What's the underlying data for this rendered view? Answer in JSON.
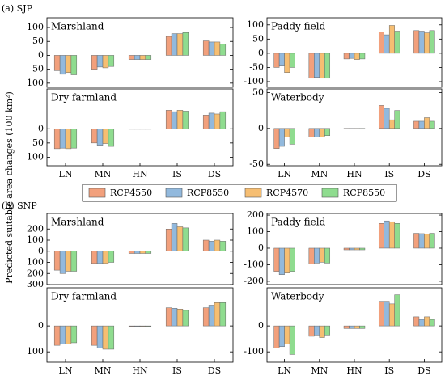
{
  "sections": [
    "(a) SJP",
    "(b) SNP"
  ],
  "y_label": "Predicted suitable area changes (100 km²)",
  "legend": [
    {
      "name": "RCP4550",
      "color": "#f2a07c"
    },
    {
      "name": "RCP8550",
      "color": "#92b9dd"
    },
    {
      "name": "RCP4570",
      "color": "#f6be72"
    },
    {
      "name": "RCP8550",
      "color": "#8fdc8f"
    }
  ],
  "chart_data": [
    {
      "type": "bar",
      "title": "Marshland",
      "ylim": [
        -115,
        135
      ],
      "yticks": [
        100,
        50,
        0,
        {
          "value": -50,
          "label": "50"
        },
        {
          "value": -100,
          "label": "100"
        }
      ],
      "series": [
        {
          "values": [
            -55,
            -50,
            -15,
            68,
            52
          ]
        },
        {
          "values": [
            -68,
            -42,
            -15,
            78,
            48
          ]
        },
        {
          "values": [
            -62,
            -45,
            -15,
            78,
            48
          ]
        },
        {
          "values": [
            -70,
            -40,
            -15,
            82,
            40
          ]
        }
      ]
    },
    {
      "type": "bar",
      "title": "Dry farmland",
      "ylim": [
        -130,
        140
      ],
      "categories": [
        "LN",
        "MN",
        "HN",
        "IS",
        "DS"
      ],
      "yticks": [
        0,
        {
          "value": -50,
          "label": "50"
        },
        {
          "value": -100,
          "label": "100"
        }
      ],
      "series": [
        {
          "values": [
            -70,
            -50,
            0,
            65,
            48
          ]
        },
        {
          "values": [
            -68,
            -58,
            0,
            60,
            55
          ]
        },
        {
          "values": [
            -70,
            -52,
            0,
            65,
            52
          ]
        },
        {
          "values": [
            -68,
            -62,
            0,
            62,
            60
          ]
        }
      ]
    },
    {
      "type": "bar",
      "title": "Paddy field",
      "ylim": [
        -120,
        125
      ],
      "yticks": [
        100,
        50,
        0,
        -50,
        -100
      ],
      "series": [
        {
          "values": [
            -50,
            -88,
            -20,
            75,
            80
          ]
        },
        {
          "values": [
            -45,
            -85,
            -18,
            65,
            78
          ]
        },
        {
          "values": [
            -68,
            -88,
            -22,
            98,
            72
          ]
        },
        {
          "values": [
            -50,
            -88,
            -20,
            78,
            80
          ]
        }
      ]
    },
    {
      "type": "bar",
      "title": "Waterbody",
      "ylim": [
        -52,
        55
      ],
      "categories": [
        "LN",
        "MN",
        "HN",
        "IS",
        "DS"
      ],
      "yticks": [
        50,
        0,
        -50
      ],
      "series": [
        {
          "values": [
            -28,
            -12,
            -1,
            32,
            10
          ]
        },
        {
          "values": [
            -25,
            -12,
            -1,
            28,
            10
          ]
        },
        {
          "values": [
            -12,
            -12,
            -1,
            12,
            15
          ]
        },
        {
          "values": [
            -22,
            -10,
            -1,
            25,
            10
          ]
        }
      ]
    },
    {
      "type": "bar",
      "title": "Marshland",
      "ylim": [
        -300,
        340
      ],
      "yticks": [
        200,
        100,
        0,
        {
          "value": -100,
          "label": "100"
        },
        {
          "value": -200,
          "label": "200"
        },
        {
          "value": -300,
          "label": "300"
        }
      ],
      "series": [
        {
          "values": [
            -170,
            -110,
            -20,
            200,
            100
          ]
        },
        {
          "values": [
            -200,
            -110,
            -20,
            250,
            90
          ]
        },
        {
          "values": [
            -180,
            -110,
            -20,
            220,
            100
          ]
        },
        {
          "values": [
            -180,
            -100,
            -20,
            210,
            90
          ]
        }
      ]
    },
    {
      "type": "bar",
      "title": "Dry farmland",
      "ylim": [
        -140,
        147
      ],
      "categories": [
        "LN",
        "MN",
        "HN",
        "IS",
        "DS"
      ],
      "yticks": [
        0,
        {
          "value": -100,
          "label": "100"
        }
      ],
      "series": [
        {
          "values": [
            -75,
            -75,
            -2,
            70,
            70
          ]
        },
        {
          "values": [
            -70,
            -85,
            -2,
            68,
            80
          ]
        },
        {
          "values": [
            -70,
            -90,
            -2,
            65,
            90
          ]
        },
        {
          "values": [
            -65,
            -90,
            -2,
            60,
            90
          ]
        }
      ]
    },
    {
      "type": "bar",
      "title": "Paddy field",
      "ylim": [
        -220,
        210
      ],
      "yticks": [
        200,
        100,
        0,
        -100,
        -200
      ],
      "series": [
        {
          "values": [
            -140,
            -95,
            -10,
            150,
            90
          ]
        },
        {
          "values": [
            -160,
            -90,
            -10,
            165,
            88
          ]
        },
        {
          "values": [
            -150,
            -85,
            -10,
            160,
            85
          ]
        },
        {
          "values": [
            -140,
            -90,
            -10,
            150,
            90
          ]
        }
      ]
    },
    {
      "type": "bar",
      "title": "Waterbody",
      "ylim": [
        -140,
        147
      ],
      "categories": [
        "LN",
        "MN",
        "HN",
        "IS",
        "DS"
      ],
      "yticks": [
        0,
        -100
      ],
      "series": [
        {
          "values": [
            -85,
            -40,
            -10,
            95,
            35
          ]
        },
        {
          "values": [
            -80,
            -35,
            -10,
            95,
            25
          ]
        },
        {
          "values": [
            -70,
            -45,
            -10,
            85,
            35
          ]
        },
        {
          "values": [
            -110,
            -35,
            -10,
            120,
            25
          ]
        }
      ]
    }
  ]
}
